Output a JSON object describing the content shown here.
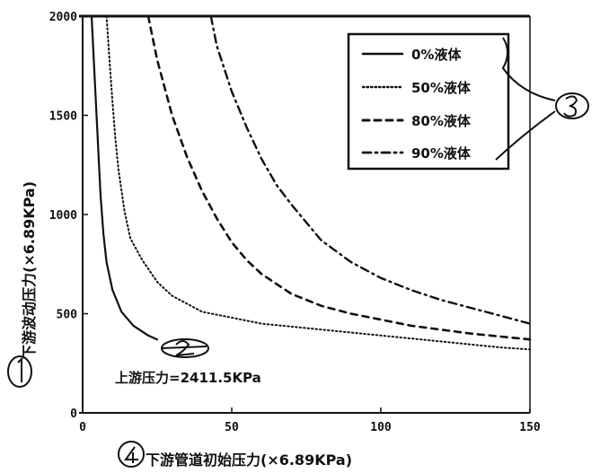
{
  "chart_data": {
    "type": "line",
    "xlabel": "下游管道初始压力(×6.89KPa)",
    "ylabel": "下游波动压力(×6.89KPa)",
    "xlim": [
      0,
      150
    ],
    "ylim": [
      0,
      2000
    ],
    "x_ticks": [
      0,
      50,
      100,
      150
    ],
    "y_ticks": [
      0,
      500,
      1000,
      1500,
      2000
    ],
    "grid": false,
    "legend_position": "top-right",
    "annotation": "上游压力=2411.5KPa",
    "series": [
      {
        "name": "0%液体",
        "style": "solid",
        "x": [
          3,
          4,
          5,
          6,
          7,
          8,
          10,
          13,
          17,
          22,
          25
        ],
        "y": [
          2000,
          1700,
          1400,
          1100,
          900,
          760,
          620,
          510,
          440,
          390,
          370
        ]
      },
      {
        "name": "50%液体",
        "style": "dotted",
        "x": [
          8,
          9,
          10,
          11,
          12,
          14,
          16,
          20,
          25,
          30,
          40,
          50,
          60,
          80,
          100,
          120,
          140,
          150
        ],
        "y": [
          2000,
          1780,
          1570,
          1380,
          1230,
          1020,
          880,
          770,
          660,
          590,
          510,
          480,
          450,
          420,
          390,
          360,
          330,
          320
        ]
      },
      {
        "name": "80%液体",
        "style": "dashed",
        "x": [
          22,
          25,
          30,
          35,
          40,
          45,
          50,
          55,
          60,
          70,
          80,
          90,
          100,
          110,
          120,
          130,
          140,
          150
        ],
        "y": [
          2000,
          1780,
          1500,
          1290,
          1120,
          980,
          860,
          770,
          700,
          600,
          540,
          500,
          470,
          440,
          420,
          400,
          385,
          370
        ]
      },
      {
        "name": "90%液体",
        "style": "dashdot",
        "x": [
          43,
          45,
          50,
          55,
          60,
          65,
          70,
          80,
          90,
          100,
          110,
          120,
          130,
          140,
          150
        ],
        "y": [
          2000,
          1850,
          1620,
          1440,
          1280,
          1150,
          1050,
          870,
          760,
          680,
          620,
          570,
          530,
          490,
          450
        ]
      }
    ]
  },
  "handwritten_marks": [
    "①",
    "②",
    "③",
    "④"
  ]
}
